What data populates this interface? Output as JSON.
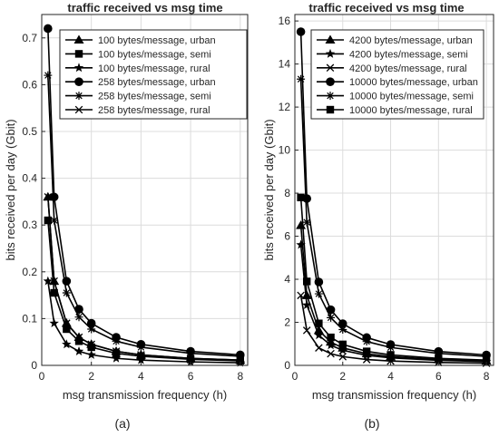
{
  "chart_data": [
    {
      "type": "line",
      "panel_label": "(a)",
      "title": "traffic received vs msg time",
      "xlabel": "msg transmission frequency (h)",
      "ylabel": "bits received per day (Gbit)",
      "xlim": [
        0,
        8.3
      ],
      "ylim": [
        0,
        0.75
      ],
      "xticks": [
        0,
        2,
        4,
        6,
        8
      ],
      "yticks": [
        0,
        0.1,
        0.2,
        0.3,
        0.4,
        0.5,
        0.6,
        0.7
      ],
      "grid": true,
      "legend_position": "top-right",
      "x": [
        0.25,
        0.5,
        1,
        1.5,
        2,
        3,
        4,
        6,
        8
      ],
      "series": [
        {
          "name": "100 bytes/message, urban",
          "marker": "triangle",
          "values": [
            0.36,
            0.18,
            0.09,
            0.06,
            0.045,
            0.03,
            0.0225,
            0.015,
            0.0113
          ]
        },
        {
          "name": "100 bytes/message, semi",
          "marker": "square",
          "values": [
            0.31,
            0.155,
            0.0775,
            0.0517,
            0.0388,
            0.0258,
            0.0194,
            0.0129,
            0.0097
          ]
        },
        {
          "name": "100 bytes/message, rural",
          "marker": "star",
          "values": [
            0.18,
            0.09,
            0.045,
            0.03,
            0.0225,
            0.015,
            0.0113,
            0.0075,
            0.0056
          ]
        },
        {
          "name": "258 bytes/message, urban",
          "marker": "circle",
          "values": [
            0.72,
            0.36,
            0.18,
            0.12,
            0.09,
            0.06,
            0.045,
            0.03,
            0.0225
          ]
        },
        {
          "name": "258 bytes/message, semi",
          "marker": "asterisk",
          "values": [
            0.62,
            0.31,
            0.155,
            0.1033,
            0.0775,
            0.0517,
            0.0388,
            0.0258,
            0.0194
          ]
        },
        {
          "name": "258 bytes/message, rural",
          "marker": "x",
          "values": [
            0.36,
            0.18,
            0.09,
            0.06,
            0.045,
            0.03,
            0.0225,
            0.015,
            0.0113
          ]
        }
      ]
    },
    {
      "type": "line",
      "panel_label": "(b)",
      "title": "traffic received vs msg time",
      "xlabel": "msg transmission frequency (h)",
      "ylabel": "bits received per day (Gbit)",
      "xlim": [
        0,
        8.3
      ],
      "ylim": [
        0,
        16.3
      ],
      "xticks": [
        0,
        2,
        4,
        6,
        8
      ],
      "yticks": [
        0,
        2,
        4,
        6,
        8,
        10,
        12,
        14,
        16
      ],
      "grid": true,
      "legend_position": "top-right",
      "x": [
        0.25,
        0.5,
        1,
        1.5,
        2,
        3,
        4,
        6,
        8
      ],
      "series": [
        {
          "name": "4200 bytes/message, urban",
          "marker": "triangle",
          "values": [
            6.5,
            3.25,
            1.625,
            1.083,
            0.8125,
            0.5417,
            0.4063,
            0.2708,
            0.2031
          ]
        },
        {
          "name": "4200 bytes/message, semi",
          "marker": "star",
          "values": [
            5.6,
            2.8,
            1.4,
            0.9333,
            0.7,
            0.4667,
            0.35,
            0.2333,
            0.175
          ]
        },
        {
          "name": "4200 bytes/message, rural",
          "marker": "x",
          "values": [
            3.25,
            1.625,
            0.8125,
            0.5417,
            0.4063,
            0.2708,
            0.2031,
            0.1354,
            0.1016
          ]
        },
        {
          "name": "10000 bytes/message, urban",
          "marker": "circle",
          "values": [
            15.5,
            7.75,
            3.875,
            2.583,
            1.9375,
            1.2917,
            0.9688,
            0.6458,
            0.4844
          ]
        },
        {
          "name": "10000 bytes/message, semi",
          "marker": "asterisk",
          "values": [
            13.3,
            6.65,
            3.325,
            2.2167,
            1.6625,
            1.1083,
            0.8313,
            0.5542,
            0.4156
          ]
        },
        {
          "name": "10000 bytes/message, rural",
          "marker": "square",
          "values": [
            7.8,
            3.9,
            1.95,
            1.3,
            0.975,
            0.65,
            0.4875,
            0.325,
            0.2438
          ]
        }
      ]
    }
  ],
  "colors": {
    "line": "#000000",
    "grid": "#dcdcdc",
    "axis": "#262626"
  }
}
